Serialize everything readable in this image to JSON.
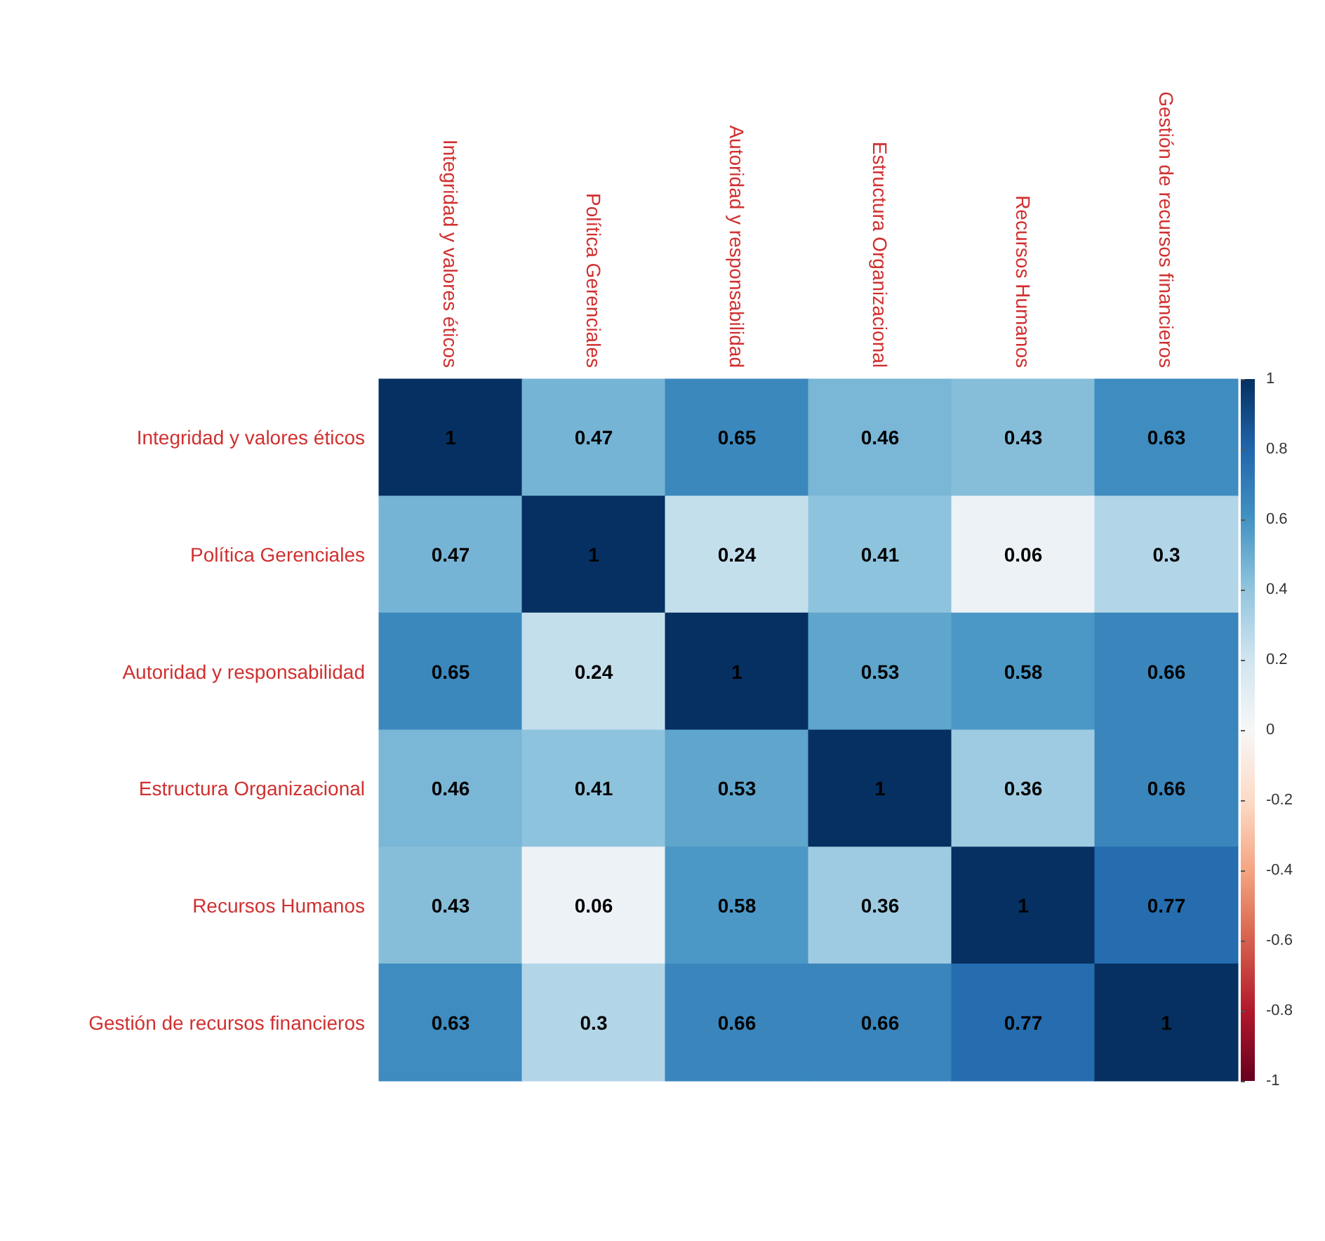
{
  "chart_data": {
    "type": "heatmap",
    "categories": [
      "Integridad y valores éticos",
      "Política Gerenciales",
      "Autoridad y responsabilidad",
      "Estructura Organizacional",
      "Recursos Humanos",
      "Gestión de recursos financieros"
    ],
    "y_categories": [
      "Integridad y valores éticos",
      "Política Gerenciales",
      "Autoridad y responsabilidad",
      "Estructura Organizacional",
      "Recursos Humanos",
      "Gestión de recursos financieros"
    ],
    "cells": [
      [
        1,
        0.47,
        0.65,
        0.46,
        0.43,
        0.63
      ],
      [
        0.47,
        1,
        0.24,
        0.41,
        0.06,
        0.3
      ],
      [
        0.65,
        0.24,
        1,
        0.53,
        0.58,
        0.66
      ],
      [
        0.46,
        0.41,
        0.53,
        1,
        0.36,
        0.66
      ],
      [
        0.43,
        0.06,
        0.58,
        0.36,
        1,
        0.77
      ],
      [
        0.63,
        0.3,
        0.66,
        0.66,
        0.77,
        1
      ]
    ],
    "clim": [
      -1,
      1
    ],
    "cticks": [
      -1,
      -0.8,
      -0.6,
      -0.4,
      -0.2,
      0,
      0.2,
      0.4,
      0.6,
      0.8,
      1
    ],
    "data_labels": true
  }
}
